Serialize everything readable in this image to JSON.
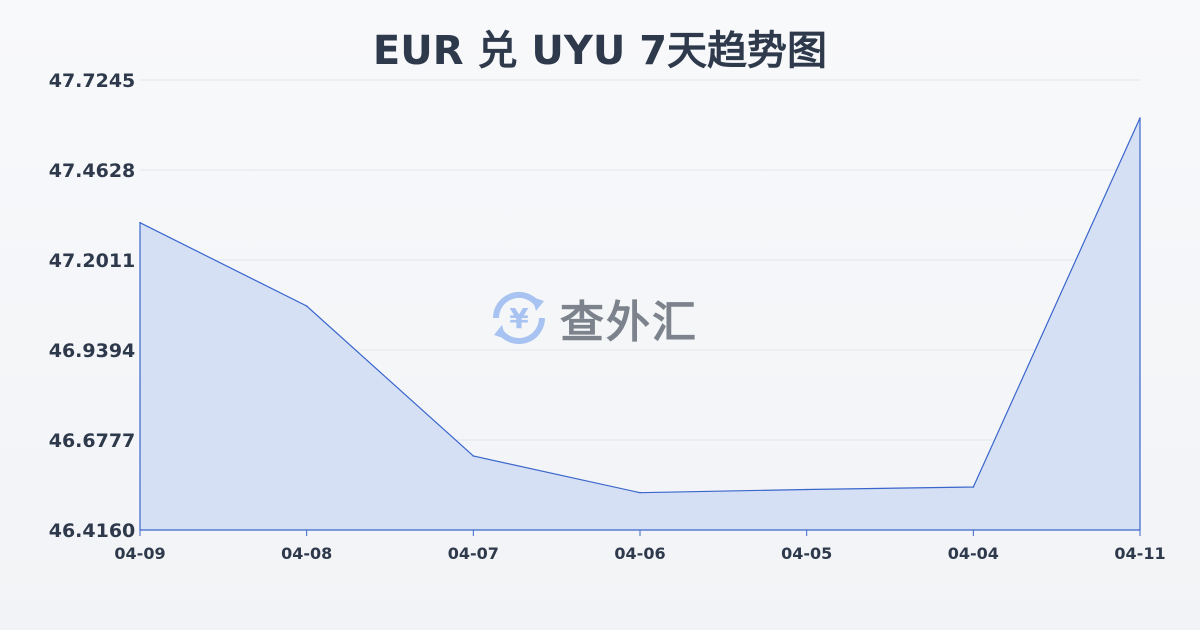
{
  "chart_data": {
    "type": "area",
    "title": "EUR 兑 UYU 7天趋势图",
    "categories": [
      "04-09",
      "04-08",
      "04-07",
      "04-06",
      "04-05",
      "04-04",
      "04-11"
    ],
    "values": [
      47.3096,
      47.0673,
      46.6312,
      46.5245,
      46.5338,
      46.541,
      47.614
    ],
    "yticks": [
      "46.4160",
      "46.6777",
      "46.9394",
      "47.2011",
      "47.4628",
      "47.7245"
    ],
    "ylim": [
      46.416,
      47.7245
    ],
    "grid": true,
    "line_color": "#3a66cc",
    "fill_color": "#d6e0f5"
  },
  "watermark": {
    "text": "查外汇",
    "icon": "yen-exchange-icon"
  }
}
